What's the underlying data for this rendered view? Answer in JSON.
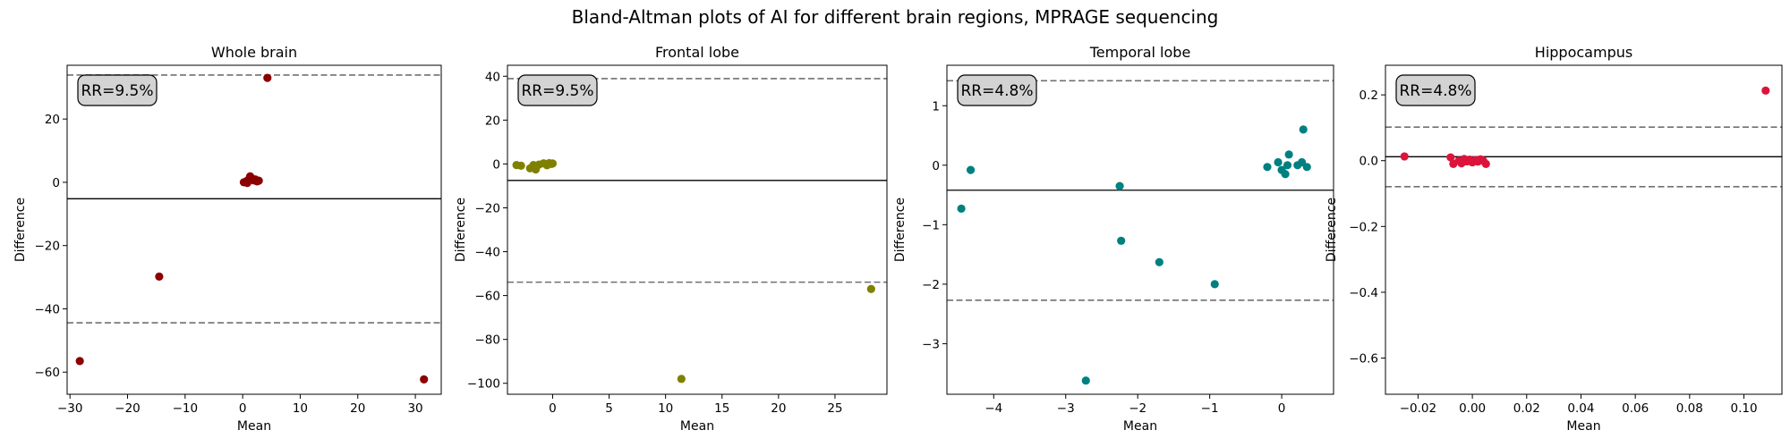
{
  "figure": {
    "title": "Bland-Altman plots of AI for different brain regions, MPRAGE sequencing"
  },
  "chart_data": [
    {
      "type": "scatter",
      "title": "Whole brain",
      "xlabel": "Mean",
      "ylabel": "Difference",
      "annotation": "RR=9.5%",
      "color": "#8b0000",
      "xlim": [
        -30.5,
        34.5
      ],
      "ylim": [
        -67,
        37
      ],
      "xticks": [
        -30,
        -20,
        -10,
        0,
        10,
        20,
        30
      ],
      "yticks": [
        -60,
        -40,
        -20,
        0,
        20
      ],
      "mean_line": -5.2,
      "loa": [
        33.9,
        -44.4
      ],
      "points": [
        {
          "x": -28.3,
          "y": -56.5
        },
        {
          "x": -14.5,
          "y": -29.8
        },
        {
          "x": 0.2,
          "y": 0.0
        },
        {
          "x": 0.6,
          "y": 0.3
        },
        {
          "x": 1.0,
          "y": 0.8
        },
        {
          "x": 1.3,
          "y": 1.9
        },
        {
          "x": 1.6,
          "y": 1.2
        },
        {
          "x": 1.9,
          "y": 0.6
        },
        {
          "x": 2.2,
          "y": 0.9
        },
        {
          "x": 2.5,
          "y": 0.3
        },
        {
          "x": 2.8,
          "y": 0.5
        },
        {
          "x": 0.8,
          "y": -0.2
        },
        {
          "x": 4.3,
          "y": 33.0
        },
        {
          "x": 31.5,
          "y": -62.3
        }
      ]
    },
    {
      "type": "scatter",
      "title": "Frontal lobe",
      "xlabel": "Mean",
      "ylabel": "Difference",
      "annotation": "RR=9.5%",
      "color": "#808000",
      "xlim": [
        -4.0,
        29.6
      ],
      "ylim": [
        -105,
        45
      ],
      "xticks": [
        0,
        5,
        10,
        15,
        20,
        25
      ],
      "yticks": [
        -100,
        -80,
        -60,
        -40,
        -20,
        0,
        20,
        40
      ],
      "mean_line": -7.5,
      "loa": [
        38.9,
        -53.9
      ],
      "points": [
        {
          "x": -3.2,
          "y": -0.5
        },
        {
          "x": -2.8,
          "y": -0.8
        },
        {
          "x": -2.0,
          "y": -2.0
        },
        {
          "x": -1.7,
          "y": -0.5
        },
        {
          "x": -1.5,
          "y": -2.5
        },
        {
          "x": -1.2,
          "y": -0.3
        },
        {
          "x": -0.8,
          "y": 0.3
        },
        {
          "x": -0.5,
          "y": -0.6
        },
        {
          "x": -0.3,
          "y": 0.4
        },
        {
          "x": -0.1,
          "y": 0.0
        },
        {
          "x": 0.0,
          "y": 0.2
        },
        {
          "x": 11.4,
          "y": -98.0
        },
        {
          "x": 28.2,
          "y": -57.0
        }
      ]
    },
    {
      "type": "scatter",
      "title": "Temporal lobe",
      "xlabel": "Mean",
      "ylabel": "Difference",
      "annotation": "RR=4.8%",
      "color": "#008080",
      "xlim": [
        -4.65,
        0.72
      ],
      "ylim": [
        -3.85,
        1.68
      ],
      "xticks": [
        -4,
        -3,
        -2,
        -1,
        0
      ],
      "yticks": [
        -3,
        -2,
        -1,
        0,
        1
      ],
      "mean_line": -0.42,
      "loa": [
        1.42,
        -2.27
      ],
      "points": [
        {
          "x": -4.45,
          "y": -0.73
        },
        {
          "x": -4.32,
          "y": -0.08
        },
        {
          "x": -2.72,
          "y": -3.62
        },
        {
          "x": -2.25,
          "y": -0.35
        },
        {
          "x": -2.23,
          "y": -1.27
        },
        {
          "x": -1.7,
          "y": -1.63
        },
        {
          "x": -0.93,
          "y": -2.0
        },
        {
          "x": -0.2,
          "y": -0.03
        },
        {
          "x": -0.05,
          "y": 0.05
        },
        {
          "x": 0.0,
          "y": -0.08
        },
        {
          "x": 0.05,
          "y": -0.15
        },
        {
          "x": 0.08,
          "y": 0.0
        },
        {
          "x": 0.1,
          "y": 0.18
        },
        {
          "x": 0.22,
          "y": 0.0
        },
        {
          "x": 0.28,
          "y": 0.05
        },
        {
          "x": 0.3,
          "y": 0.6
        },
        {
          "x": 0.35,
          "y": -0.03
        }
      ]
    },
    {
      "type": "scatter",
      "title": "Hippocampus",
      "xlabel": "Mean",
      "ylabel": "Difference",
      "annotation": "RR=4.8%",
      "color": "#dc143c",
      "xlim": [
        -0.032,
        0.114
      ],
      "ylim": [
        -0.71,
        0.29
      ],
      "xticks": [
        -0.02,
        0.0,
        0.02,
        0.04,
        0.06,
        0.08,
        0.1
      ],
      "yticks": [
        -0.6,
        -0.4,
        -0.2,
        0.0,
        0.2
      ],
      "mean_line": 0.012,
      "loa": [
        0.102,
        -0.079
      ],
      "points": [
        {
          "x": -0.025,
          "y": 0.013
        },
        {
          "x": -0.008,
          "y": 0.01
        },
        {
          "x": -0.007,
          "y": -0.01
        },
        {
          "x": -0.005,
          "y": 0.0
        },
        {
          "x": -0.004,
          "y": -0.008
        },
        {
          "x": -0.003,
          "y": 0.005
        },
        {
          "x": -0.002,
          "y": -0.002
        },
        {
          "x": -0.001,
          "y": 0.003
        },
        {
          "x": 0.0,
          "y": -0.005
        },
        {
          "x": 0.001,
          "y": 0.002
        },
        {
          "x": 0.002,
          "y": -0.003
        },
        {
          "x": 0.003,
          "y": 0.004
        },
        {
          "x": 0.004,
          "y": 0.0
        },
        {
          "x": 0.005,
          "y": -0.01
        },
        {
          "x": 0.108,
          "y": 0.213
        }
      ]
    }
  ]
}
